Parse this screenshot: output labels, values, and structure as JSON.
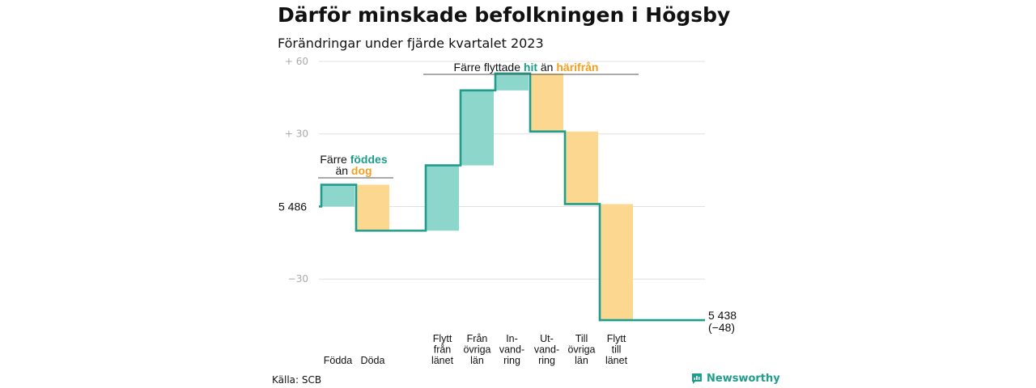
{
  "title": "Därför minskade befolkningen i Högsby",
  "subtitle": "Förändringar under fjärde kvartalet 2023",
  "source": "Källa: SCB",
  "brand": "Newsworthy",
  "colors": {
    "increase": "#8dd6cb",
    "decrease": "#fbd78f",
    "line": "#1e9c8c",
    "increase_text": "#1e9c8c",
    "decrease_text": "#f0a020"
  },
  "annotations": {
    "births": {
      "l1_a": "Färre ",
      "l1_b": "föddes",
      "l2_a": "än ",
      "l2_b": "dog"
    },
    "moves": {
      "a": "Färre flyttade ",
      "b": "hit",
      "c": " än ",
      "d": "härifrån"
    }
  },
  "chart_data": {
    "type": "waterfall",
    "start_label": "5 486",
    "end_label": [
      "5 438",
      "(−48)"
    ],
    "y_ticks": [
      {
        "value": 60,
        "label": "+  60"
      },
      {
        "value": 30,
        "label": "+  30"
      },
      {
        "value": -30,
        "label": "−30"
      }
    ],
    "ylim": [
      -55,
      66
    ],
    "steps": [
      {
        "label": [
          "Födda"
        ],
        "change": 9
      },
      {
        "label": [
          "Döda"
        ],
        "change": -19
      },
      {
        "label": [
          "Flytt",
          "från",
          "länet"
        ],
        "change": 27
      },
      {
        "label": [
          "Från",
          "övriga",
          "län"
        ],
        "change": 31
      },
      {
        "label": [
          "In-",
          "vand-",
          "ring"
        ],
        "change": 7
      },
      {
        "label": [
          "Ut-",
          "vand-",
          "ring"
        ],
        "change": -24
      },
      {
        "label": [
          "Till",
          "övriga",
          "län"
        ],
        "change": -30
      },
      {
        "label": [
          "Flytt",
          "till",
          "länet"
        ],
        "change": -48
      }
    ]
  }
}
